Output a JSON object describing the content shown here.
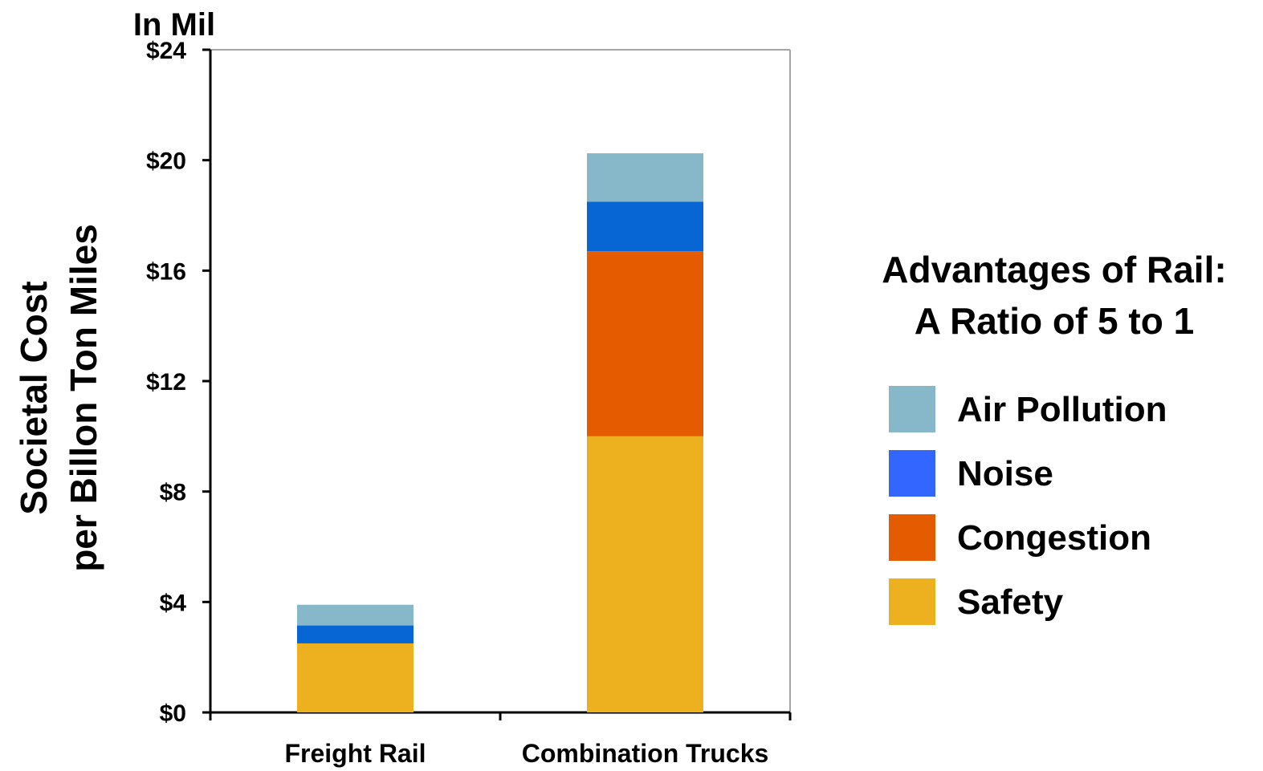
{
  "chart_data": {
    "type": "bar",
    "stacked": true,
    "unit_label": "In Mil",
    "ylabel_line1": "Societal Cost",
    "ylabel_line2": "per Billon Ton Miles",
    "xlabel": "",
    "categories": [
      "Freight Rail",
      "Combination Trucks"
    ],
    "ylim": [
      0,
      24
    ],
    "yticks": [
      0,
      4,
      8,
      12,
      16,
      20,
      24
    ],
    "ytick_labels": [
      "$0",
      "$4",
      "$8",
      "$12",
      "$16",
      "$20",
      "$24"
    ],
    "grid": false,
    "legend_position": "right",
    "series": [
      {
        "name": "Safety",
        "values": [
          2.5,
          10.0
        ],
        "color": "#EDB120",
        "legend_color": "#EDB120"
      },
      {
        "name": "Congestion",
        "values": [
          0,
          6.7
        ],
        "color": "#E55B00",
        "legend_color": "#E55B00"
      },
      {
        "name": "Noise",
        "values": [
          0.65,
          1.8
        ],
        "color": "#0766D3",
        "legend_color": "#3366FF"
      },
      {
        "name": "Air Pollution",
        "values": [
          0.75,
          1.75
        ],
        "color": "#86B8C9",
        "legend_color": "#86B8C9"
      }
    ],
    "annotation_title_line1": "Advantages of Rail:",
    "annotation_title_line2": "A Ratio of 5 to 1"
  }
}
